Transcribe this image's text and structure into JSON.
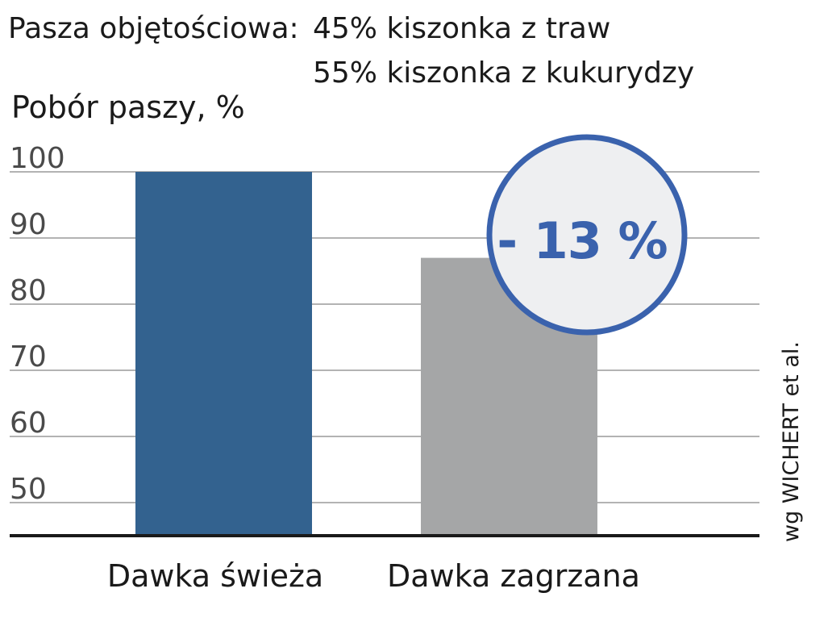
{
  "header": {
    "label": "Pasza objętościowa:",
    "lines": [
      "45% kiszonka z traw",
      "55% kiszonka z kukurydzy"
    ]
  },
  "colors": {
    "bar_fresh": "#33628f",
    "bar_heated": "#a5a6a7",
    "grid": "#9a9a9a",
    "axis": "#1a1a1a",
    "badge_fill": "#eeeff1",
    "badge_stroke": "#3a62ad",
    "badge_text": "#3a62ad",
    "text": "#1a1a1a",
    "tick_text": "#4a4a4a"
  },
  "chart_data": {
    "type": "bar",
    "title": "",
    "ylabel": "Pobór paszy, %",
    "xlabel": "",
    "categories": [
      "Dawka świeża",
      "Dawka zagrzana"
    ],
    "values": [
      100,
      87
    ],
    "ylim": [
      45,
      100
    ],
    "yticks": [
      100,
      90,
      80,
      70,
      60,
      50
    ],
    "grid": true,
    "annotation": "- 13 %",
    "source": "wg WICHERT et al."
  }
}
